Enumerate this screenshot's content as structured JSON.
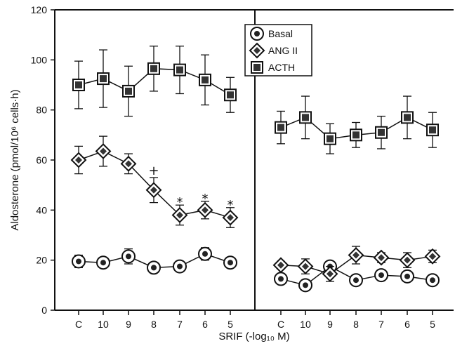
{
  "chart_data": {
    "type": "line",
    "ylabel": "Aldosterone (pmol/10⁶ cells·h)",
    "xlabel": "SRIF (-log₁₀ M)",
    "ylim": [
      0,
      120
    ],
    "yticks": [
      0,
      20,
      40,
      60,
      80,
      100,
      120
    ],
    "grid": false,
    "legend_position": "top-right",
    "categories": [
      "C",
      "10",
      "9",
      "8",
      "7",
      "6",
      "5"
    ],
    "panels": [
      {
        "name": "left",
        "series": [
          {
            "name": "Basal",
            "marker": "circle",
            "values": [
              19.5,
              19,
              21.5,
              17,
              17.5,
              22.5,
              19
            ],
            "errors": [
              2.5,
              1.5,
              3,
              1,
              1.5,
              2.5,
              1.5
            ]
          },
          {
            "name": "ANG II",
            "marker": "diamond",
            "values": [
              60,
              63.5,
              58.5,
              48,
              38,
              40,
              37
            ],
            "errors": [
              5.5,
              6,
              4,
              5,
              4,
              3.5,
              4
            ]
          },
          {
            "name": "ACTH",
            "marker": "square",
            "values": [
              90,
              92.5,
              87.5,
              96.5,
              96,
              92,
              86
            ],
            "errors": [
              9.5,
              11.5,
              10,
              9,
              9.5,
              10,
              7
            ]
          }
        ],
        "annotations": [
          {
            "category": "8",
            "symbol": "+"
          },
          {
            "category": "7",
            "symbol": "*"
          },
          {
            "category": "6",
            "symbol": "*"
          },
          {
            "category": "5",
            "symbol": "*"
          }
        ]
      },
      {
        "name": "right",
        "series": [
          {
            "name": "Basal",
            "marker": "circle",
            "values": [
              12.5,
              10,
              17.5,
              12,
              14,
              13.5,
              12
            ],
            "errors": [
              1.5,
              1,
              2,
              1,
              2,
              1.5,
              1
            ]
          },
          {
            "name": "ANG II",
            "marker": "diamond",
            "values": [
              18,
              17.5,
              14.5,
              22,
              21,
              20,
              21.5
            ],
            "errors": [
              1.5,
              3,
              3,
              3.5,
              2,
              3,
              2.5
            ]
          },
          {
            "name": "ACTH",
            "marker": "square",
            "values": [
              73,
              77,
              68.5,
              70,
              71,
              77,
              72
            ],
            "errors": [
              6.5,
              8.5,
              6,
              5,
              6.5,
              8.5,
              7
            ]
          }
        ],
        "annotations": []
      }
    ],
    "legend": [
      {
        "name": "Basal",
        "marker": "circle"
      },
      {
        "name": "ANG II",
        "marker": "diamond"
      },
      {
        "name": "ACTH",
        "marker": "square"
      }
    ]
  }
}
